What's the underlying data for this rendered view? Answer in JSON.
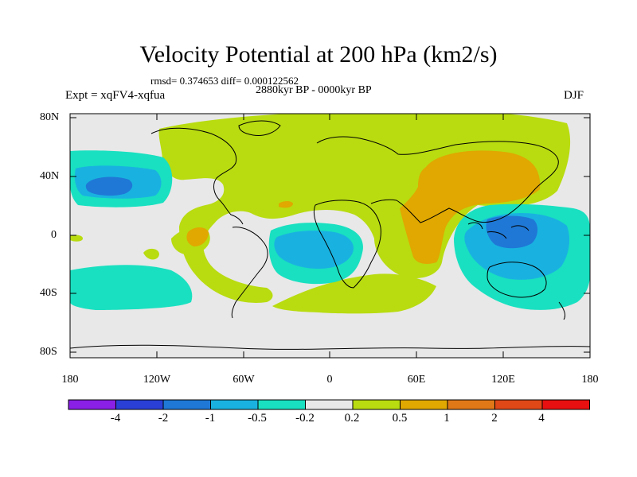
{
  "title": "Velocity Potential at 200 hPa (km2/s)",
  "stats": "rmsd= 0.374653 diff= 0.000122562",
  "period": "2880kyr BP - 0000kyr BP",
  "experiment": "Expt = xqFV4-xqfua",
  "season": "DJF",
  "axes": {
    "lat_labels": [
      "80N",
      "40N",
      "0",
      "40S",
      "80S"
    ],
    "lon_labels": [
      "180",
      "120W",
      "60W",
      "0",
      "60E",
      "120E",
      "180"
    ]
  },
  "colorbar": {
    "labels": [
      "-4",
      "-2",
      "-1",
      "-0.5",
      "-0.2",
      "0.2",
      "0.5",
      "1",
      "2",
      "4"
    ],
    "colors": [
      "#8a1fe6",
      "#2a3fd6",
      "#1f78d6",
      "#19b2e0",
      "#19e0c0",
      "#e8e8e8",
      "#b8dc10",
      "#e0a800",
      "#e07818",
      "#e04818",
      "#e81010"
    ]
  },
  "map_colors": {
    "background": "#e8e8e8",
    "pos_weak": "#b8dc10",
    "pos_mid": "#e0a800",
    "neg_weak": "#19e0c0",
    "neg_mid": "#19b2e0",
    "neg_strong": "#1f78d6"
  }
}
